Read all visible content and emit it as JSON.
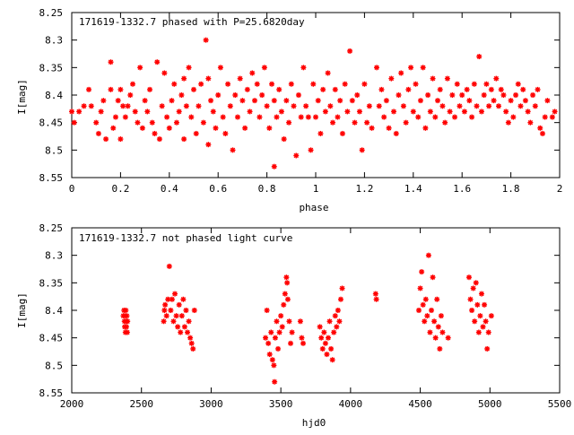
{
  "chart_data": [
    {
      "type": "scatter",
      "title": "171619-1332.7 phased with P=25.6820day",
      "xlabel": "phase",
      "ylabel": "I[mag]",
      "xlim": [
        0,
        2
      ],
      "ylim": [
        8.55,
        8.25
      ],
      "y_axis_inverted": true,
      "grid": false,
      "x_ticks": [
        "0",
        "0.2",
        "0.4",
        "0.6",
        "0.8",
        "1",
        "1.2",
        "1.4",
        "1.6",
        "1.8",
        "2"
      ],
      "y_ticks": [
        "8.25",
        "8.3",
        "8.35",
        "8.4",
        "8.45",
        "8.5",
        "8.55"
      ],
      "marker_color": "#ff0000",
      "points": [
        [
          0.0,
          8.43
        ],
        [
          0.01,
          8.45
        ],
        [
          0.03,
          8.43
        ],
        [
          0.05,
          8.42
        ],
        [
          0.07,
          8.39
        ],
        [
          0.08,
          8.42
        ],
        [
          0.1,
          8.45
        ],
        [
          0.11,
          8.47
        ],
        [
          0.12,
          8.43
        ],
        [
          0.13,
          8.41
        ],
        [
          0.14,
          8.48
        ],
        [
          0.16,
          8.34
        ],
        [
          0.16,
          8.39
        ],
        [
          0.17,
          8.46
        ],
        [
          0.18,
          8.44
        ],
        [
          0.19,
          8.41
        ],
        [
          0.2,
          8.48
        ],
        [
          0.2,
          8.39
        ],
        [
          0.21,
          8.42
        ],
        [
          0.22,
          8.44
        ],
        [
          0.23,
          8.42
        ],
        [
          0.24,
          8.4
        ],
        [
          0.25,
          8.38
        ],
        [
          0.26,
          8.43
        ],
        [
          0.27,
          8.45
        ],
        [
          0.28,
          8.35
        ],
        [
          0.29,
          8.46
        ],
        [
          0.3,
          8.41
        ],
        [
          0.31,
          8.43
        ],
        [
          0.32,
          8.39
        ],
        [
          0.33,
          8.45
        ],
        [
          0.34,
          8.47
        ],
        [
          0.35,
          8.34
        ],
        [
          0.36,
          8.48
        ],
        [
          0.37,
          8.42
        ],
        [
          0.38,
          8.36
        ],
        [
          0.39,
          8.44
        ],
        [
          0.4,
          8.46
        ],
        [
          0.41,
          8.41
        ],
        [
          0.42,
          8.38
        ],
        [
          0.43,
          8.45
        ],
        [
          0.44,
          8.43
        ],
        [
          0.45,
          8.4
        ],
        [
          0.46,
          8.37
        ],
        [
          0.46,
          8.48
        ],
        [
          0.47,
          8.42
        ],
        [
          0.48,
          8.35
        ],
        [
          0.49,
          8.44
        ],
        [
          0.5,
          8.39
        ],
        [
          0.51,
          8.47
        ],
        [
          0.52,
          8.42
        ],
        [
          0.53,
          8.38
        ],
        [
          0.54,
          8.45
        ],
        [
          0.55,
          8.3
        ],
        [
          0.56,
          8.49
        ],
        [
          0.56,
          8.37
        ],
        [
          0.57,
          8.41
        ],
        [
          0.58,
          8.43
        ],
        [
          0.59,
          8.46
        ],
        [
          0.6,
          8.4
        ],
        [
          0.61,
          8.35
        ],
        [
          0.62,
          8.44
        ],
        [
          0.63,
          8.47
        ],
        [
          0.64,
          8.38
        ],
        [
          0.65,
          8.42
        ],
        [
          0.66,
          8.5
        ],
        [
          0.67,
          8.4
        ],
        [
          0.68,
          8.44
        ],
        [
          0.69,
          8.37
        ],
        [
          0.7,
          8.41
        ],
        [
          0.71,
          8.46
        ],
        [
          0.72,
          8.39
        ],
        [
          0.73,
          8.43
        ],
        [
          0.74,
          8.36
        ],
        [
          0.75,
          8.41
        ],
        [
          0.76,
          8.38
        ],
        [
          0.77,
          8.44
        ],
        [
          0.78,
          8.4
        ],
        [
          0.79,
          8.35
        ],
        [
          0.8,
          8.42
        ],
        [
          0.81,
          8.46
        ],
        [
          0.82,
          8.38
        ],
        [
          0.83,
          8.53
        ],
        [
          0.83,
          8.41
        ],
        [
          0.84,
          8.44
        ],
        [
          0.85,
          8.39
        ],
        [
          0.86,
          8.43
        ],
        [
          0.87,
          8.48
        ],
        [
          0.88,
          8.41
        ],
        [
          0.89,
          8.45
        ],
        [
          0.9,
          8.38
        ],
        [
          0.91,
          8.42
        ],
        [
          0.92,
          8.51
        ],
        [
          0.93,
          8.4
        ],
        [
          0.94,
          8.44
        ],
        [
          0.95,
          8.35
        ],
        [
          0.96,
          8.42
        ],
        [
          0.97,
          8.44
        ],
        [
          0.98,
          8.5
        ],
        [
          0.99,
          8.38
        ],
        [
          1.0,
          8.44
        ],
        [
          1.01,
          8.41
        ],
        [
          1.02,
          8.47
        ],
        [
          1.03,
          8.39
        ],
        [
          1.04,
          8.43
        ],
        [
          1.05,
          8.36
        ],
        [
          1.06,
          8.42
        ],
        [
          1.07,
          8.45
        ],
        [
          1.08,
          8.39
        ],
        [
          1.09,
          8.44
        ],
        [
          1.1,
          8.41
        ],
        [
          1.11,
          8.47
        ],
        [
          1.12,
          8.38
        ],
        [
          1.13,
          8.43
        ],
        [
          1.14,
          8.32
        ],
        [
          1.15,
          8.41
        ],
        [
          1.16,
          8.45
        ],
        [
          1.17,
          8.4
        ],
        [
          1.18,
          8.43
        ],
        [
          1.19,
          8.5
        ],
        [
          1.2,
          8.38
        ],
        [
          1.21,
          8.45
        ],
        [
          1.22,
          8.42
        ],
        [
          1.23,
          8.46
        ],
        [
          1.25,
          8.35
        ],
        [
          1.26,
          8.42
        ],
        [
          1.27,
          8.39
        ],
        [
          1.28,
          8.44
        ],
        [
          1.29,
          8.41
        ],
        [
          1.3,
          8.46
        ],
        [
          1.31,
          8.37
        ],
        [
          1.32,
          8.43
        ],
        [
          1.33,
          8.47
        ],
        [
          1.34,
          8.4
        ],
        [
          1.35,
          8.36
        ],
        [
          1.36,
          8.42
        ],
        [
          1.37,
          8.45
        ],
        [
          1.38,
          8.39
        ],
        [
          1.39,
          8.35
        ],
        [
          1.4,
          8.43
        ],
        [
          1.41,
          8.38
        ],
        [
          1.42,
          8.44
        ],
        [
          1.43,
          8.41
        ],
        [
          1.44,
          8.35
        ],
        [
          1.45,
          8.46
        ],
        [
          1.46,
          8.4
        ],
        [
          1.47,
          8.43
        ],
        [
          1.48,
          8.37
        ],
        [
          1.49,
          8.44
        ],
        [
          1.5,
          8.41
        ],
        [
          1.51,
          8.39
        ],
        [
          1.52,
          8.42
        ],
        [
          1.53,
          8.45
        ],
        [
          1.54,
          8.37
        ],
        [
          1.55,
          8.43
        ],
        [
          1.56,
          8.4
        ],
        [
          1.57,
          8.44
        ],
        [
          1.58,
          8.38
        ],
        [
          1.59,
          8.42
        ],
        [
          1.6,
          8.4
        ],
        [
          1.61,
          8.43
        ],
        [
          1.62,
          8.39
        ],
        [
          1.63,
          8.41
        ],
        [
          1.64,
          8.44
        ],
        [
          1.65,
          8.38
        ],
        [
          1.66,
          8.42
        ],
        [
          1.67,
          8.33
        ],
        [
          1.68,
          8.43
        ],
        [
          1.69,
          8.4
        ],
        [
          1.7,
          8.38
        ],
        [
          1.71,
          8.42
        ],
        [
          1.72,
          8.39
        ],
        [
          1.73,
          8.41
        ],
        [
          1.74,
          8.37
        ],
        [
          1.75,
          8.42
        ],
        [
          1.76,
          8.39
        ],
        [
          1.77,
          8.4
        ],
        [
          1.78,
          8.43
        ],
        [
          1.79,
          8.45
        ],
        [
          1.8,
          8.41
        ],
        [
          1.81,
          8.44
        ],
        [
          1.82,
          8.4
        ],
        [
          1.83,
          8.38
        ],
        [
          1.84,
          8.42
        ],
        [
          1.85,
          8.39
        ],
        [
          1.86,
          8.41
        ],
        [
          1.87,
          8.43
        ],
        [
          1.88,
          8.45
        ],
        [
          1.89,
          8.4
        ],
        [
          1.9,
          8.42
        ],
        [
          1.91,
          8.39
        ],
        [
          1.92,
          8.46
        ],
        [
          1.93,
          8.47
        ],
        [
          1.94,
          8.44
        ],
        [
          1.95,
          8.41
        ],
        [
          1.97,
          8.44
        ],
        [
          1.98,
          8.43
        ]
      ]
    },
    {
      "type": "scatter",
      "title": "171619-1332.7 not phased light curve",
      "xlabel": "hjd0",
      "ylabel": "I[mag]",
      "xlim": [
        2000,
        5500
      ],
      "ylim": [
        8.55,
        8.25
      ],
      "y_axis_inverted": true,
      "grid": false,
      "x_ticks": [
        "2000",
        "2500",
        "3000",
        "3500",
        "4000",
        "4500",
        "5000",
        "5500"
      ],
      "y_ticks": [
        "8.25",
        "8.3",
        "8.35",
        "8.4",
        "8.45",
        "8.5",
        "8.55"
      ],
      "marker_color": "#ff0000",
      "points": [
        [
          2370,
          8.41
        ],
        [
          2375,
          8.4
        ],
        [
          2378,
          8.42
        ],
        [
          2380,
          8.43
        ],
        [
          2382,
          8.41
        ],
        [
          2385,
          8.44
        ],
        [
          2388,
          8.4
        ],
        [
          2390,
          8.42
        ],
        [
          2392,
          8.43
        ],
        [
          2395,
          8.41
        ],
        [
          2398,
          8.44
        ],
        [
          2400,
          8.42
        ],
        [
          2660,
          8.42
        ],
        [
          2665,
          8.4
        ],
        [
          2670,
          8.39
        ],
        [
          2680,
          8.41
        ],
        [
          2690,
          8.38
        ],
        [
          2700,
          8.32
        ],
        [
          2710,
          8.4
        ],
        [
          2720,
          8.38
        ],
        [
          2730,
          8.42
        ],
        [
          2740,
          8.37
        ],
        [
          2750,
          8.41
        ],
        [
          2760,
          8.43
        ],
        [
          2770,
          8.39
        ],
        [
          2780,
          8.44
        ],
        [
          2790,
          8.41
        ],
        [
          2800,
          8.38
        ],
        [
          2810,
          8.43
        ],
        [
          2820,
          8.4
        ],
        [
          2830,
          8.44
        ],
        [
          2840,
          8.42
        ],
        [
          2850,
          8.45
        ],
        [
          2860,
          8.46
        ],
        [
          2870,
          8.47
        ],
        [
          2880,
          8.4
        ],
        [
          3390,
          8.45
        ],
        [
          3400,
          8.4
        ],
        [
          3410,
          8.46
        ],
        [
          3420,
          8.48
        ],
        [
          3430,
          8.44
        ],
        [
          3440,
          8.49
        ],
        [
          3450,
          8.5
        ],
        [
          3455,
          8.53
        ],
        [
          3460,
          8.45
        ],
        [
          3470,
          8.42
        ],
        [
          3480,
          8.47
        ],
        [
          3490,
          8.44
        ],
        [
          3500,
          8.41
        ],
        [
          3510,
          8.43
        ],
        [
          3520,
          8.39
        ],
        [
          3530,
          8.37
        ],
        [
          3540,
          8.34
        ],
        [
          3545,
          8.35
        ],
        [
          3550,
          8.38
        ],
        [
          3560,
          8.42
        ],
        [
          3570,
          8.46
        ],
        [
          3580,
          8.44
        ],
        [
          3640,
          8.42
        ],
        [
          3650,
          8.45
        ],
        [
          3660,
          8.46
        ],
        [
          3780,
          8.43
        ],
        [
          3790,
          8.45
        ],
        [
          3800,
          8.47
        ],
        [
          3810,
          8.44
        ],
        [
          3820,
          8.46
        ],
        [
          3830,
          8.48
        ],
        [
          3840,
          8.45
        ],
        [
          3850,
          8.42
        ],
        [
          3860,
          8.47
        ],
        [
          3870,
          8.49
        ],
        [
          3880,
          8.44
        ],
        [
          3890,
          8.41
        ],
        [
          3900,
          8.43
        ],
        [
          3910,
          8.4
        ],
        [
          3920,
          8.42
        ],
        [
          3930,
          8.38
        ],
        [
          3940,
          8.36
        ],
        [
          4180,
          8.37
        ],
        [
          4185,
          8.38
        ],
        [
          4490,
          8.4
        ],
        [
          4500,
          8.36
        ],
        [
          4510,
          8.33
        ],
        [
          4520,
          8.39
        ],
        [
          4530,
          8.42
        ],
        [
          4540,
          8.38
        ],
        [
          4550,
          8.41
        ],
        [
          4560,
          8.3
        ],
        [
          4570,
          8.44
        ],
        [
          4580,
          8.4
        ],
        [
          4590,
          8.34
        ],
        [
          4600,
          8.42
        ],
        [
          4610,
          8.45
        ],
        [
          4620,
          8.38
        ],
        [
          4630,
          8.43
        ],
        [
          4640,
          8.47
        ],
        [
          4650,
          8.41
        ],
        [
          4660,
          8.44
        ],
        [
          4700,
          8.45
        ],
        [
          4850,
          8.34
        ],
        [
          4860,
          8.38
        ],
        [
          4870,
          8.4
        ],
        [
          4880,
          8.36
        ],
        [
          4890,
          8.42
        ],
        [
          4900,
          8.35
        ],
        [
          4910,
          8.39
        ],
        [
          4920,
          8.44
        ],
        [
          4930,
          8.41
        ],
        [
          4940,
          8.37
        ],
        [
          4950,
          8.43
        ],
        [
          4960,
          8.39
        ],
        [
          4970,
          8.42
        ],
        [
          4980,
          8.47
        ],
        [
          4990,
          8.44
        ],
        [
          5010,
          8.41
        ]
      ]
    }
  ]
}
